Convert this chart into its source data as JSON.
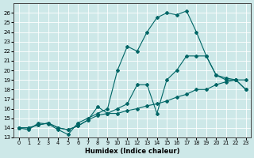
{
  "xlabel": "Humidex (Indice chaleur)",
  "background_color": "#cde8e8",
  "grid_color": "#ffffff",
  "line_color": "#006666",
  "xlim": [
    -0.5,
    23.5
  ],
  "ylim": [
    13,
    27
  ],
  "yticks": [
    13,
    14,
    15,
    16,
    17,
    18,
    19,
    20,
    21,
    22,
    23,
    24,
    25,
    26
  ],
  "xticks": [
    0,
    1,
    2,
    3,
    4,
    5,
    6,
    7,
    8,
    9,
    10,
    11,
    12,
    13,
    14,
    15,
    16,
    17,
    18,
    19,
    20,
    21,
    22,
    23
  ],
  "x": [
    0,
    1,
    2,
    3,
    4,
    5,
    6,
    7,
    8,
    9,
    10,
    11,
    12,
    13,
    14,
    15,
    16,
    17,
    18,
    19,
    20,
    21,
    22,
    23
  ],
  "line_top": [
    14.0,
    13.8,
    14.5,
    14.4,
    13.8,
    13.3,
    14.5,
    15.0,
    15.5,
    16.0,
    20.0,
    22.5,
    22.0,
    24.0,
    25.5,
    26.0,
    25.8,
    26.2,
    24.0,
    21.5,
    19.5,
    19.0,
    19.0,
    18.0
  ],
  "line_mid": [
    14.0,
    14.0,
    14.3,
    14.5,
    14.0,
    13.8,
    14.2,
    14.8,
    16.2,
    15.5,
    16.0,
    16.5,
    18.5,
    18.5,
    15.5,
    19.0,
    20.0,
    21.5,
    21.5,
    21.5,
    19.5,
    19.2,
    19.0,
    19.0
  ],
  "line_bot": [
    14.0,
    14.0,
    14.3,
    14.5,
    14.0,
    13.8,
    14.2,
    14.8,
    15.3,
    15.5,
    15.5,
    15.8,
    16.0,
    16.3,
    16.5,
    16.8,
    17.2,
    17.5,
    18.0,
    18.0,
    18.5,
    18.8,
    19.0,
    18.0
  ]
}
